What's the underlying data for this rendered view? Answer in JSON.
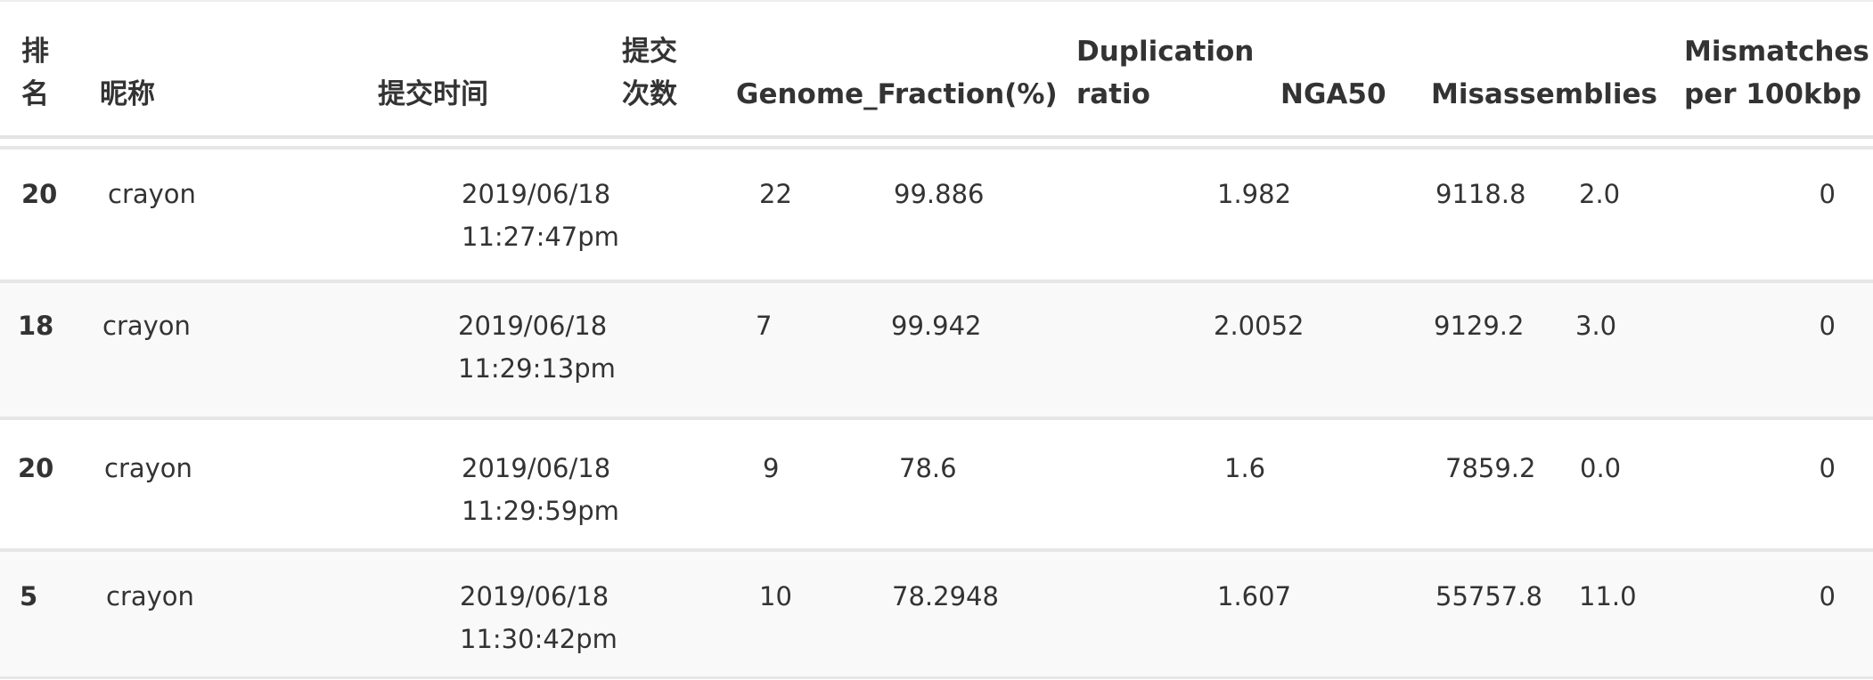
{
  "headers": {
    "rank_line1": "排",
    "rank_line2": "名",
    "nickname": "昵称",
    "submit_time": "提交时间",
    "submit_count_line1": "提交",
    "submit_count_line2": "次数",
    "genome_fraction": "Genome_Fraction(%)",
    "duplication_line1": "Duplication",
    "duplication_line2": "ratio",
    "nga50": "NGA50",
    "misassemblies": "Misassemblies",
    "mismatches_line1": "Mismatches",
    "mismatches_line2": "per 100kbp"
  },
  "rows": [
    {
      "rank": "20",
      "nickname": "crayon",
      "date": "2019/06/18",
      "time": "11:27:47pm",
      "count": "22",
      "genome_fraction": "99.886",
      "duplication": "1.982",
      "nga50": "9118.8",
      "misassemblies": "2.0",
      "mismatches": "0"
    },
    {
      "rank": "18",
      "nickname": "crayon",
      "date": "2019/06/18",
      "time": "11:29:13pm",
      "count": "7",
      "genome_fraction": "99.942",
      "duplication": "2.0052",
      "nga50": "9129.2",
      "misassemblies": "3.0",
      "mismatches": "0"
    },
    {
      "rank": "20",
      "nickname": "crayon",
      "date": "2019/06/18",
      "time": "11:29:59pm",
      "count": "9",
      "genome_fraction": "78.6",
      "duplication": "1.6",
      "nga50": "7859.2",
      "misassemblies": "0.0",
      "mismatches": "0"
    },
    {
      "rank": "5",
      "nickname": "crayon",
      "date": "2019/06/18",
      "time": "11:30:42pm",
      "count": "10",
      "genome_fraction": "78.2948",
      "duplication": "1.607",
      "nga50": "55757.8",
      "misassemblies": "11.0",
      "mismatches": "0"
    }
  ]
}
